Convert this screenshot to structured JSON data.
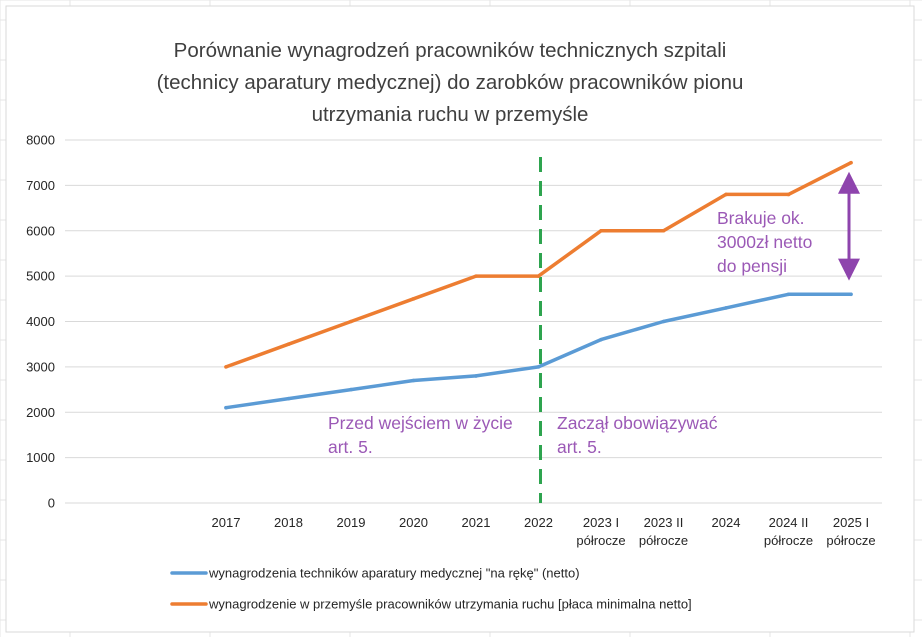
{
  "chart_data": {
    "type": "line",
    "title_lines": [
      "Porównanie wynagrodzeń pracowników technicznych szpitali",
      "(technicy aparatury medycznej) do zarobków pracowników pionu",
      "utrzymania ruchu w przemyśle"
    ],
    "categories": [
      [
        "2017"
      ],
      [
        "2018"
      ],
      [
        "2019"
      ],
      [
        "2020"
      ],
      [
        "2021"
      ],
      [
        "2022"
      ],
      [
        "2023 I",
        "półrocze"
      ],
      [
        "2023 II",
        "półrocze"
      ],
      [
        "2024"
      ],
      [
        "2024  II",
        "półrocze"
      ],
      [
        "2025 I",
        "półrocze"
      ]
    ],
    "ylim": [
      0,
      8000
    ],
    "yticks": [
      0,
      1000,
      2000,
      3000,
      4000,
      5000,
      6000,
      7000,
      8000
    ],
    "series": [
      {
        "name": "wynagrodzenia techników aparatury medycznej \"na rękę\" (netto)",
        "color": "#5b9bd5",
        "values": [
          2100,
          2300,
          2500,
          2700,
          2800,
          3000,
          3600,
          4000,
          4300,
          4600,
          4600
        ]
      },
      {
        "name": "wynagrodzenie w przemyśle pracowników utrzymania ruchu [płaca minimalna netto]",
        "color": "#ed7d31",
        "values": [
          3000,
          3500,
          4000,
          4500,
          5000,
          5000,
          6000,
          6000,
          6800,
          6800,
          7500
        ]
      }
    ],
    "divider": {
      "category_index": 5,
      "color": "#2ea44f"
    },
    "annotations": {
      "before": {
        "lines": [
          "Przed wejściem w życie",
          "art. 5."
        ],
        "color": "#9b59b6"
      },
      "after": {
        "lines": [
          "Zaczął obowiązywać",
          "art. 5."
        ],
        "color": "#9b59b6"
      },
      "gap": {
        "lines": [
          "Brakuje ok.",
          "3000zł netto",
          "do pensji"
        ],
        "color": "#9b59b6",
        "arrow_color": "#8e44ad",
        "arrow_from_value": 7300,
        "arrow_to_value": 4900
      }
    },
    "grid": true,
    "legend_position": "bottom"
  }
}
